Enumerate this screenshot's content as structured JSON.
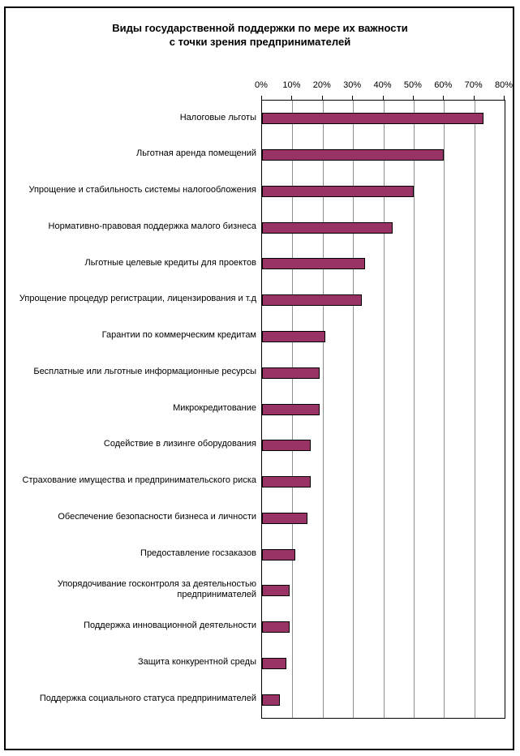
{
  "chart_data": {
    "type": "bar",
    "orientation": "horizontal",
    "title": "Виды государственной поддержки по мере их важности с точки зрения предпринимателей",
    "title_line1": "Виды государственной поддержки по мере их важности",
    "title_line2": "с точки зрения предпринимателей",
    "categories": [
      "Налоговые льготы",
      "Льготная аренда помещений",
      "Упрощение и стабильность системы налогообложения",
      "Нормативно-правовая поддержка малого бизнеса",
      "Льготные целевые кредиты для проектов",
      "Упрощение процедур регистрации, лицензирования и т.д",
      "Гарантии по коммерческим кредитам",
      "Бесплатные или льготные информационные ресурсы",
      "Микрокредитование",
      "Содействие в лизинге оборудования",
      "Страхование имущества и предпринимательского риска",
      "Обеспечение безопасности бизнеса и личности",
      "Предоставление госзаказов",
      "Упорядочивание госконтроля за деятельностью предпринимателей",
      "Поддержка инновационной деятельности",
      "Защита конкурентной среды",
      "Поддержка социального статуса предпринимателей"
    ],
    "values": [
      73,
      60,
      50,
      43,
      34,
      33,
      21,
      19,
      19,
      16,
      16,
      15,
      11,
      9,
      9,
      8,
      6
    ],
    "value_unit": "%",
    "xlim": [
      0,
      80
    ],
    "x_tick_step": 10,
    "x_tick_labels": [
      "0%",
      "10%",
      "20%",
      "30%",
      "40%",
      "50%",
      "60%",
      "70%",
      "80%"
    ],
    "grid": true,
    "legend": "none",
    "bar_color": "#993366",
    "bar_border_color": "#000000",
    "gridline_color": "#909090",
    "plot_border_color": "#000000"
  }
}
